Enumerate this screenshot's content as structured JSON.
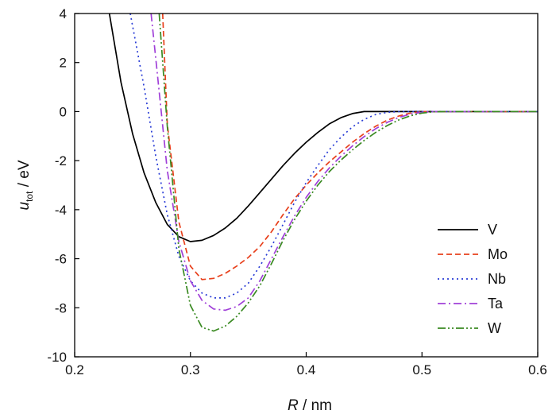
{
  "chart_data": {
    "type": "line",
    "xlabel": {
      "var": "R",
      "unit": " / nm"
    },
    "ylabel": {
      "var": "u",
      "sub": "tot",
      "unit": " / eV"
    },
    "xlim": [
      0.2,
      0.6
    ],
    "ylim": [
      -10,
      4
    ],
    "xticks": [
      0.2,
      0.3,
      0.4,
      0.5,
      0.6
    ],
    "xtick_labels": [
      "0.2",
      "0.3",
      "0.4",
      "0.5",
      "0.6"
    ],
    "yticks": [
      4,
      2,
      0,
      -2,
      -4,
      -6,
      -8,
      -10
    ],
    "ytick_labels": [
      "4",
      "2",
      "0",
      "-2",
      "-4",
      "-6",
      "-8",
      "-10"
    ],
    "grid": false,
    "legend": "bottom-right",
    "series": [
      {
        "name": "V",
        "color": "#000000",
        "dash": "solid",
        "x": [
          0.23,
          0.24,
          0.25,
          0.26,
          0.27,
          0.28,
          0.29,
          0.3,
          0.31,
          0.32,
          0.33,
          0.34,
          0.35,
          0.36,
          0.37,
          0.38,
          0.39,
          0.4,
          0.41,
          0.42,
          0.43,
          0.44,
          0.45,
          0.6
        ],
        "y": [
          4.0,
          1.2,
          -0.9,
          -2.5,
          -3.7,
          -4.6,
          -5.1,
          -5.3,
          -5.25,
          -5.05,
          -4.75,
          -4.35,
          -3.85,
          -3.3,
          -2.75,
          -2.2,
          -1.7,
          -1.25,
          -0.85,
          -0.5,
          -0.25,
          -0.08,
          0.0,
          0.0
        ]
      },
      {
        "name": "Mo",
        "color": "#e8401c",
        "dash": "dashed",
        "x": [
          0.276,
          0.28,
          0.29,
          0.3,
          0.31,
          0.32,
          0.33,
          0.34,
          0.35,
          0.36,
          0.37,
          0.38,
          0.39,
          0.4,
          0.41,
          0.42,
          0.43,
          0.44,
          0.45,
          0.46,
          0.47,
          0.48,
          0.49,
          0.5,
          0.6
        ],
        "y": [
          4.0,
          -0.5,
          -4.5,
          -6.3,
          -6.85,
          -6.8,
          -6.6,
          -6.3,
          -5.95,
          -5.5,
          -4.9,
          -4.2,
          -3.55,
          -3.0,
          -2.5,
          -2.05,
          -1.65,
          -1.25,
          -0.9,
          -0.6,
          -0.35,
          -0.18,
          -0.06,
          0.0,
          0.0
        ]
      },
      {
        "name": "Nb",
        "color": "#2a3dd6",
        "dash": "dotted",
        "x": [
          0.248,
          0.26,
          0.27,
          0.28,
          0.29,
          0.3,
          0.31,
          0.32,
          0.33,
          0.34,
          0.35,
          0.36,
          0.37,
          0.38,
          0.39,
          0.4,
          0.41,
          0.42,
          0.43,
          0.44,
          0.45,
          0.46,
          0.47,
          0.48,
          0.6
        ],
        "y": [
          4.0,
          1.0,
          -1.8,
          -4.2,
          -5.9,
          -6.9,
          -7.4,
          -7.6,
          -7.6,
          -7.4,
          -7.0,
          -6.3,
          -5.5,
          -4.6,
          -3.7,
          -2.9,
          -2.2,
          -1.55,
          -1.05,
          -0.62,
          -0.32,
          -0.12,
          -0.03,
          0.0,
          0.0
        ]
      },
      {
        "name": "Ta",
        "color": "#a040d8",
        "dash": "dashdot",
        "x": [
          0.266,
          0.27,
          0.28,
          0.29,
          0.3,
          0.31,
          0.32,
          0.33,
          0.34,
          0.35,
          0.36,
          0.37,
          0.38,
          0.39,
          0.4,
          0.41,
          0.42,
          0.43,
          0.44,
          0.45,
          0.46,
          0.47,
          0.48,
          0.49,
          0.5,
          0.51,
          0.6
        ],
        "y": [
          4.0,
          2.2,
          -2.4,
          -5.3,
          -6.9,
          -7.7,
          -8.05,
          -8.1,
          -7.95,
          -7.6,
          -6.9,
          -6.0,
          -5.1,
          -4.25,
          -3.5,
          -2.85,
          -2.3,
          -1.82,
          -1.4,
          -1.02,
          -0.7,
          -0.44,
          -0.24,
          -0.1,
          -0.03,
          0.0,
          0.0
        ]
      },
      {
        "name": "W",
        "color": "#3a8a22",
        "dash": "dashdotdot",
        "x": [
          0.273,
          0.28,
          0.29,
          0.3,
          0.31,
          0.32,
          0.33,
          0.34,
          0.35,
          0.36,
          0.37,
          0.38,
          0.39,
          0.4,
          0.41,
          0.42,
          0.43,
          0.44,
          0.45,
          0.46,
          0.47,
          0.48,
          0.49,
          0.5,
          0.51,
          0.52,
          0.6
        ],
        "y": [
          4.0,
          -0.6,
          -5.6,
          -7.9,
          -8.8,
          -8.95,
          -8.75,
          -8.35,
          -7.8,
          -7.1,
          -6.2,
          -5.25,
          -4.4,
          -3.65,
          -3.0,
          -2.45,
          -1.98,
          -1.56,
          -1.18,
          -0.85,
          -0.57,
          -0.34,
          -0.17,
          -0.06,
          -0.01,
          0.0,
          0.0
        ]
      }
    ]
  }
}
